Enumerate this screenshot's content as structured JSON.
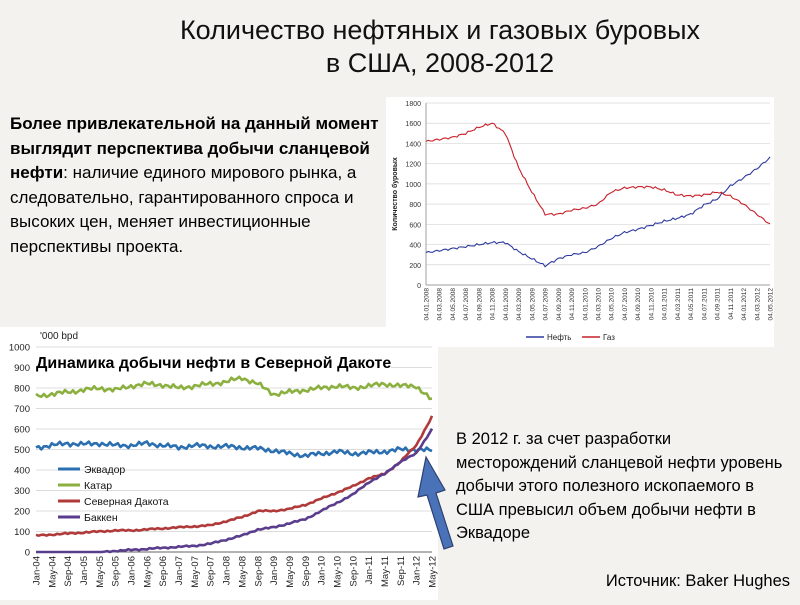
{
  "slide": {
    "title_line1": "Количество нефтяных и газовых буровых",
    "title_line2": "в США, 2008-2012",
    "intro_bold": "Более привлекательной на данный момент выглядит перспектива добычи сланцевой нефти",
    "intro_rest": ": наличие единого мирового рынка, а следовательно, гарантированного спроса и высоких цен, меняет инвестиционные перспективы проекта.",
    "note": "В 2012 г. за счет разработки месторождений сланцевой нефти уровень добычи этого полезного ископаемого в США превысил объем добычи нефти в Эквадоре",
    "source": "Источник: Baker Hughes",
    "arrow_color": "#4a72b8"
  },
  "chart_data": [
    {
      "type": "line",
      "ylabel": "Количество буровых",
      "ylim": [
        0,
        1800
      ],
      "yticks": [
        0,
        200,
        400,
        600,
        800,
        1000,
        1200,
        1400,
        1600,
        1800
      ],
      "grid": true,
      "legend": "bottom",
      "x": [
        "04.01.2008",
        "04.03.2008",
        "04.05.2008",
        "04.07.2008",
        "04.09.2008",
        "04.11.2008",
        "04.01.2009",
        "04.03.2009",
        "04.05.2009",
        "04.07.2009",
        "04.09.2009",
        "04.11.2009",
        "04.01.2010",
        "04.03.2010",
        "04.05.2010",
        "04.07.2010",
        "04.09.2010",
        "04.11.2010",
        "04.01.2011",
        "04.03.2011",
        "04.05.2011",
        "04.07.2011",
        "04.09.2011",
        "04.11.2011",
        "04.01.2012",
        "04.03.2012",
        "04.05.2012"
      ],
      "series": [
        {
          "name": "Нефть",
          "color": "#2e3a9e",
          "values": [
            320,
            340,
            360,
            380,
            400,
            420,
            420,
            330,
            260,
            190,
            260,
            300,
            320,
            380,
            460,
            520,
            550,
            590,
            630,
            660,
            700,
            790,
            850,
            980,
            1060,
            1150,
            1260
          ]
        },
        {
          "name": "Газ",
          "color": "#c8202a",
          "values": [
            1420,
            1440,
            1460,
            1500,
            1560,
            1600,
            1500,
            1160,
            920,
            700,
            700,
            740,
            760,
            800,
            920,
            960,
            970,
            970,
            940,
            890,
            880,
            890,
            920,
            880,
            800,
            700,
            600
          ]
        }
      ]
    },
    {
      "type": "line",
      "title": "Динамика добычи нефти в Северной Дакоте",
      "units_label": "'000 bpd",
      "ylim": [
        0,
        1000
      ],
      "yticks": [
        0,
        100,
        200,
        300,
        400,
        500,
        600,
        700,
        800,
        900,
        1000
      ],
      "grid": true,
      "legend": "left",
      "x": [
        "Jan-04",
        "May-04",
        "Sep-04",
        "Jan-05",
        "May-05",
        "Sep-05",
        "Jan-06",
        "May-06",
        "Sep-06",
        "Jan-07",
        "May-07",
        "Sep-07",
        "Jan-08",
        "May-08",
        "Sep-08",
        "Jan-09",
        "May-09",
        "Sep-09",
        "Jan-10",
        "May-10",
        "Sep-10",
        "Jan-11",
        "May-11",
        "Sep-11",
        "Jan-12",
        "May-12"
      ],
      "series": [
        {
          "name": "Эквадор",
          "color": "#2b6fb0",
          "values": [
            510,
            520,
            530,
            525,
            530,
            520,
            520,
            530,
            520,
            510,
            520,
            515,
            515,
            510,
            505,
            495,
            480,
            470,
            480,
            490,
            480,
            485,
            490,
            500,
            500,
            495
          ]
        },
        {
          "name": "Катар",
          "color": "#8cb040",
          "values": [
            760,
            770,
            780,
            790,
            800,
            790,
            810,
            820,
            815,
            800,
            810,
            820,
            830,
            850,
            820,
            770,
            780,
            790,
            800,
            810,
            800,
            810,
            820,
            810,
            810,
            740
          ]
        },
        {
          "name": "Северная Дакота",
          "color": "#b03a3a",
          "values": [
            80,
            85,
            90,
            95,
            100,
            105,
            105,
            110,
            115,
            120,
            125,
            130,
            150,
            170,
            200,
            200,
            210,
            230,
            260,
            290,
            320,
            360,
            380,
            440,
            520,
            660
          ]
        },
        {
          "name": "Баккен",
          "color": "#5a3d8c",
          "values": [
            0,
            0,
            0,
            0,
            0,
            5,
            10,
            15,
            20,
            25,
            30,
            40,
            60,
            80,
            110,
            120,
            140,
            160,
            200,
            240,
            280,
            340,
            380,
            440,
            480,
            600
          ]
        }
      ]
    }
  ]
}
